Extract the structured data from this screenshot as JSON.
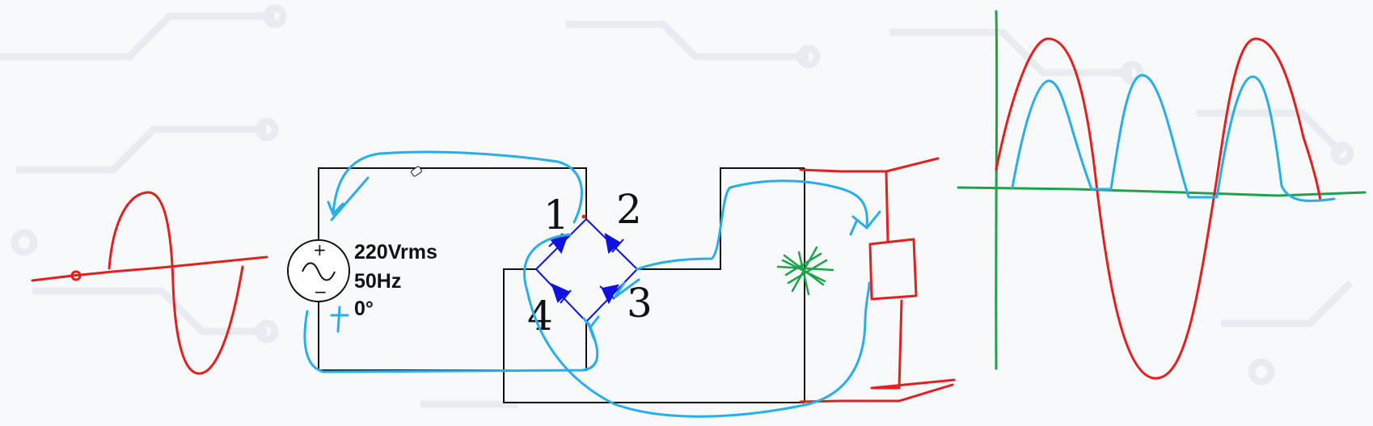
{
  "source": {
    "voltage": "220Vrms",
    "frequency": "50Hz",
    "phase": "0°",
    "plus_sign": "+",
    "minus_sign": "−",
    "polarity_mark": "+"
  },
  "bridge": {
    "diode_labels": [
      "1",
      "2",
      "3",
      "4"
    ]
  },
  "colors": {
    "wire": "#111111",
    "diode": "#1010e0",
    "current_path": "#29aee6",
    "input_wave": "#e41f1f",
    "axes": "#1ea34a",
    "output_wave": "#29aee6",
    "scribble": "#1ea34a",
    "background": "#f7f9fb",
    "circuit_pattern": "#e8ecf0"
  },
  "icons": [
    "ac-source-icon",
    "diode-icon",
    "cursor-icon"
  ]
}
